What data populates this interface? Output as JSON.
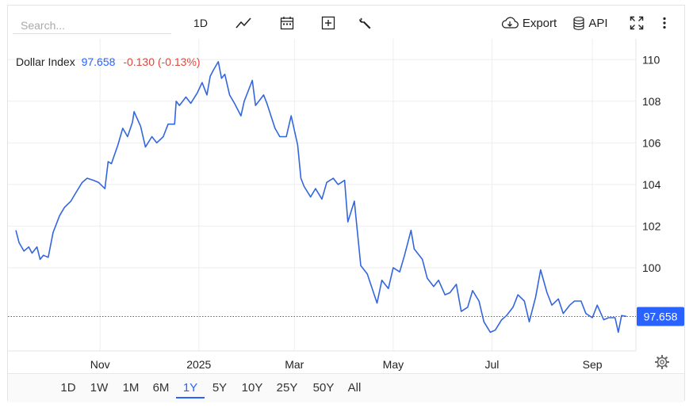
{
  "toolbar": {
    "search_placeholder": "Search...",
    "interval_label": "1D",
    "export_label": "Export",
    "api_label": "API"
  },
  "legend": {
    "name": "Dollar Index",
    "value": "97.658",
    "change": "-0.130 (-0.13%)"
  },
  "price_tag": "97.658",
  "range_buttons": [
    "1D",
    "1W",
    "1M",
    "6M",
    "1Y",
    "5Y",
    "10Y",
    "25Y",
    "50Y",
    "All"
  ],
  "active_range": "1Y",
  "colors": {
    "line": "#3366dd",
    "value_blue": "#2962ff",
    "change_red": "#e0483d",
    "price_tag_bg": "#2962ff",
    "grid": "#eeeeee"
  },
  "icons": [
    "line-chart-icon",
    "calendar-icon",
    "add-indicator-icon",
    "wrench-icon",
    "cloud-download-icon",
    "database-icon",
    "fullscreen-icon",
    "more-vertical-icon",
    "gear-icon"
  ],
  "chart_data": {
    "type": "line",
    "title": "Dollar Index",
    "xlabel": "",
    "ylabel": "",
    "ylim": [
      96.0,
      111.0
    ],
    "yticks": [
      100,
      102,
      104,
      106,
      108,
      110
    ],
    "ytick_labels": [
      "100",
      "102",
      "104",
      "106",
      "108",
      "110"
    ],
    "xtick_labels": [
      {
        "label": "Nov",
        "date": "2024-11-01"
      },
      {
        "label": "2025",
        "date": "2025-01-01"
      },
      {
        "label": "Mar",
        "date": "2025-03-01"
      },
      {
        "label": "May",
        "date": "2025-05-01"
      },
      {
        "label": "Jul",
        "date": "2025-07-01"
      },
      {
        "label": "Sep",
        "date": "2025-09-01"
      }
    ],
    "x_start": "2024-09-10",
    "x_end": "2025-09-22",
    "last_value": 97.658,
    "series": [
      {
        "name": "Dollar Index",
        "points": [
          [
            "2024-09-10",
            101.8
          ],
          [
            "2024-09-12",
            101.2
          ],
          [
            "2024-09-15",
            100.8
          ],
          [
            "2024-09-18",
            101.0
          ],
          [
            "2024-09-20",
            100.7
          ],
          [
            "2024-09-23",
            101.0
          ],
          [
            "2024-09-25",
            100.4
          ],
          [
            "2024-09-27",
            100.6
          ],
          [
            "2024-09-30",
            100.5
          ],
          [
            "2024-10-03",
            101.7
          ],
          [
            "2024-10-07",
            102.5
          ],
          [
            "2024-10-10",
            102.9
          ],
          [
            "2024-10-14",
            103.2
          ],
          [
            "2024-10-17",
            103.6
          ],
          [
            "2024-10-21",
            104.1
          ],
          [
            "2024-10-24",
            104.3
          ],
          [
            "2024-10-28",
            104.2
          ],
          [
            "2024-10-31",
            104.1
          ],
          [
            "2024-11-04",
            103.8
          ],
          [
            "2024-11-06",
            105.1
          ],
          [
            "2024-11-08",
            105.0
          ],
          [
            "2024-11-12",
            105.9
          ],
          [
            "2024-11-15",
            106.7
          ],
          [
            "2024-11-18",
            106.3
          ],
          [
            "2024-11-21",
            107.0
          ],
          [
            "2024-11-22",
            107.5
          ],
          [
            "2024-11-26",
            106.8
          ],
          [
            "2024-11-29",
            105.8
          ],
          [
            "2024-12-03",
            106.3
          ],
          [
            "2024-12-06",
            106.0
          ],
          [
            "2024-12-10",
            106.3
          ],
          [
            "2024-12-13",
            106.9
          ],
          [
            "2024-12-17",
            106.9
          ],
          [
            "2024-12-18",
            108.0
          ],
          [
            "2024-12-20",
            107.8
          ],
          [
            "2024-12-24",
            108.2
          ],
          [
            "2024-12-27",
            107.9
          ],
          [
            "2024-12-31",
            108.4
          ],
          [
            "2025-01-03",
            108.9
          ],
          [
            "2025-01-06",
            108.3
          ],
          [
            "2025-01-08",
            109.2
          ],
          [
            "2025-01-10",
            109.5
          ],
          [
            "2025-01-13",
            109.9
          ],
          [
            "2025-01-15",
            109.1
          ],
          [
            "2025-01-17",
            109.3
          ],
          [
            "2025-01-20",
            108.3
          ],
          [
            "2025-01-23",
            107.9
          ],
          [
            "2025-01-27",
            107.3
          ],
          [
            "2025-01-29",
            108.0
          ],
          [
            "2025-02-03",
            109.0
          ],
          [
            "2025-02-05",
            107.8
          ],
          [
            "2025-02-10",
            108.3
          ],
          [
            "2025-02-12",
            107.9
          ],
          [
            "2025-02-17",
            106.7
          ],
          [
            "2025-02-20",
            106.3
          ],
          [
            "2025-02-24",
            106.3
          ],
          [
            "2025-02-27",
            107.3
          ],
          [
            "2025-03-03",
            105.9
          ],
          [
            "2025-03-05",
            104.3
          ],
          [
            "2025-03-07",
            103.9
          ],
          [
            "2025-03-11",
            103.4
          ],
          [
            "2025-03-14",
            103.8
          ],
          [
            "2025-03-18",
            103.3
          ],
          [
            "2025-03-21",
            104.1
          ],
          [
            "2025-03-25",
            104.3
          ],
          [
            "2025-03-28",
            104.0
          ],
          [
            "2025-04-01",
            104.2
          ],
          [
            "2025-04-03",
            102.2
          ],
          [
            "2025-04-07",
            103.2
          ],
          [
            "2025-04-11",
            100.1
          ],
          [
            "2025-04-15",
            99.7
          ],
          [
            "2025-04-21",
            98.3
          ],
          [
            "2025-04-24",
            99.4
          ],
          [
            "2025-04-28",
            99.0
          ],
          [
            "2025-05-01",
            100.0
          ],
          [
            "2025-05-05",
            99.8
          ],
          [
            "2025-05-08",
            100.6
          ],
          [
            "2025-05-12",
            101.8
          ],
          [
            "2025-05-14",
            100.9
          ],
          [
            "2025-05-19",
            100.4
          ],
          [
            "2025-05-22",
            99.5
          ],
          [
            "2025-05-26",
            99.1
          ],
          [
            "2025-05-29",
            99.4
          ],
          [
            "2025-06-02",
            98.7
          ],
          [
            "2025-06-05",
            98.8
          ],
          [
            "2025-06-09",
            99.2
          ],
          [
            "2025-06-12",
            97.9
          ],
          [
            "2025-06-16",
            98.1
          ],
          [
            "2025-06-19",
            98.9
          ],
          [
            "2025-06-23",
            98.4
          ],
          [
            "2025-06-26",
            97.4
          ],
          [
            "2025-06-30",
            96.9
          ],
          [
            "2025-07-03",
            97.0
          ],
          [
            "2025-07-07",
            97.5
          ],
          [
            "2025-07-10",
            97.7
          ],
          [
            "2025-07-14",
            98.1
          ],
          [
            "2025-07-17",
            98.7
          ],
          [
            "2025-07-21",
            98.4
          ],
          [
            "2025-07-24",
            97.4
          ],
          [
            "2025-07-28",
            98.6
          ],
          [
            "2025-07-31",
            99.9
          ],
          [
            "2025-08-04",
            98.8
          ],
          [
            "2025-08-07",
            98.2
          ],
          [
            "2025-08-11",
            98.5
          ],
          [
            "2025-08-14",
            97.8
          ],
          [
            "2025-08-18",
            98.2
          ],
          [
            "2025-08-21",
            98.4
          ],
          [
            "2025-08-25",
            98.4
          ],
          [
            "2025-08-28",
            97.8
          ],
          [
            "2025-09-01",
            97.6
          ],
          [
            "2025-09-04",
            98.2
          ],
          [
            "2025-09-08",
            97.5
          ],
          [
            "2025-09-11",
            97.6
          ],
          [
            "2025-09-15",
            97.6
          ],
          [
            "2025-09-17",
            96.9
          ],
          [
            "2025-09-19",
            97.7
          ],
          [
            "2025-09-22",
            97.658
          ]
        ]
      }
    ]
  }
}
